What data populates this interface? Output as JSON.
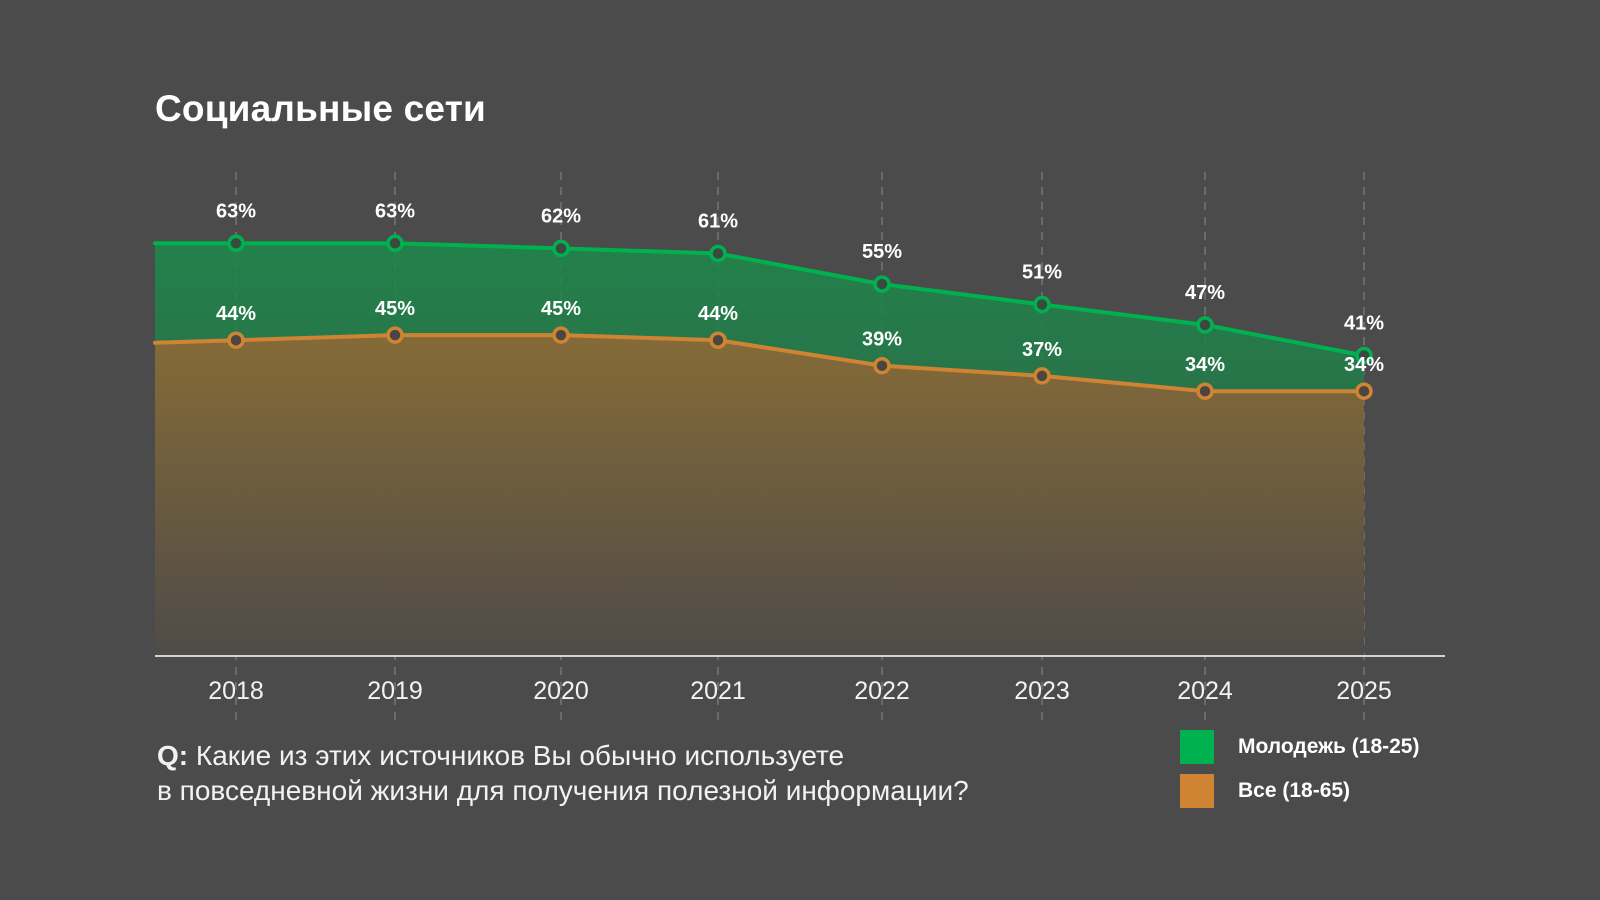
{
  "title": "Социальные сети",
  "question": {
    "prefix": "Q:",
    "line1": "Какие из этих источников Вы обычно используете",
    "line2": "в повседневной жизни для получения полезной информации?"
  },
  "legend": [
    {
      "label": "Молодежь (18-25)",
      "color": "#00b14f"
    },
    {
      "label": "Все (18-65)",
      "color": "#cf8434"
    }
  ],
  "chart_data": {
    "type": "area",
    "title": "Социальные сети",
    "xlabel": "",
    "ylabel": "",
    "categories": [
      "2018",
      "2019",
      "2020",
      "2021",
      "2022",
      "2023",
      "2024",
      "2025"
    ],
    "series": [
      {
        "name": "Молодежь (18-25)",
        "color": "#00b14f",
        "values": [
          63,
          63,
          62,
          61,
          55,
          51,
          47,
          41
        ],
        "labels": [
          "63%",
          "63%",
          "62%",
          "61%",
          "55%",
          "51%",
          "47%",
          "41%"
        ]
      },
      {
        "name": "Все (18-65)",
        "color": "#cf8434",
        "values": [
          44,
          45,
          45,
          44,
          39,
          37,
          34,
          34
        ],
        "labels": [
          "44%",
          "45%",
          "45%",
          "44%",
          "39%",
          "37%",
          "34%",
          "34%"
        ]
      }
    ],
    "grid": "vertical dashed",
    "legend_position": "bottom-right"
  }
}
